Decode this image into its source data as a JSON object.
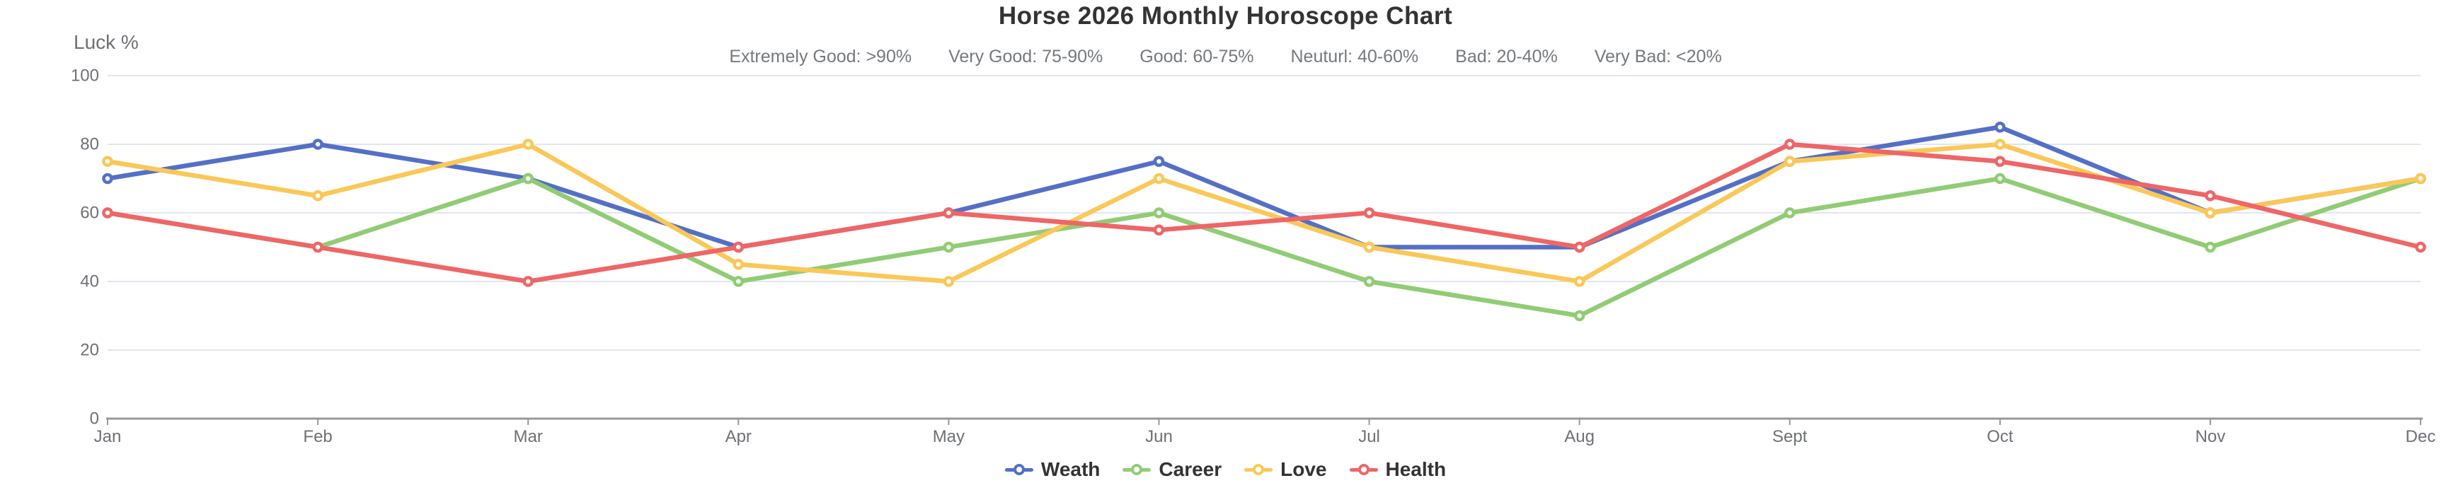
{
  "chart_data": {
    "type": "line",
    "title": "Horse 2026 Monthly Horoscope Chart",
    "subtitle_segments": [
      "Extremely Good: >90%",
      "Very Good: 75-90%",
      "Good: 60-75%",
      "Neuturl: 40-60%",
      "Bad: 20-40%",
      "Very Bad: <20%"
    ],
    "y_axis_name": "Luck %",
    "categories": [
      "Jan",
      "Feb",
      "Mar",
      "Apr",
      "May",
      "Jun",
      "Jul",
      "Aug",
      "Sept",
      "Oct",
      "Nov",
      "Dec"
    ],
    "y_ticks": [
      0,
      20,
      40,
      60,
      80,
      100
    ],
    "ylim": [
      0,
      100
    ],
    "grid": true,
    "legend_position": "bottom",
    "marker": "hollow-circle",
    "series": [
      {
        "name": "Weath",
        "color": "#5470C6",
        "values": [
          70,
          80,
          70,
          50,
          60,
          75,
          50,
          50,
          75,
          85,
          60,
          70
        ]
      },
      {
        "name": "Career",
        "color": "#91CC75",
        "values": [
          60,
          50,
          70,
          40,
          50,
          60,
          40,
          30,
          60,
          70,
          50,
          70
        ]
      },
      {
        "name": "Love",
        "color": "#FAC858",
        "values": [
          75,
          65,
          80,
          45,
          40,
          70,
          50,
          40,
          75,
          80,
          60,
          70
        ]
      },
      {
        "name": "Health",
        "color": "#EE6666",
        "values": [
          60,
          50,
          40,
          50,
          60,
          55,
          60,
          50,
          80,
          75,
          65,
          50
        ]
      }
    ],
    "colors": {
      "grid_line": "#E0E6F1",
      "axis_line": "#999999",
      "axis_text": "#6E7079",
      "title_text": "#333333",
      "subtitle_text": "#75797e",
      "legend_text": "#333333",
      "marker_fill": "#ffffff"
    }
  }
}
